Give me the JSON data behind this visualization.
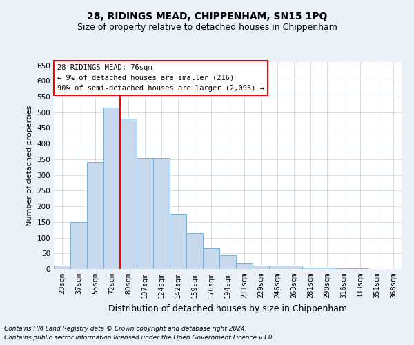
{
  "title": "28, RIDINGS MEAD, CHIPPENHAM, SN15 1PQ",
  "subtitle": "Size of property relative to detached houses in Chippenham",
  "xlabel": "Distribution of detached houses by size in Chippenham",
  "ylabel": "Number of detached properties",
  "bins": [
    "20sqm",
    "37sqm",
    "55sqm",
    "72sqm",
    "89sqm",
    "107sqm",
    "124sqm",
    "142sqm",
    "159sqm",
    "176sqm",
    "194sqm",
    "211sqm",
    "229sqm",
    "246sqm",
    "263sqm",
    "281sqm",
    "298sqm",
    "316sqm",
    "333sqm",
    "351sqm",
    "368sqm"
  ],
  "values": [
    10,
    150,
    340,
    515,
    480,
    355,
    355,
    175,
    115,
    65,
    45,
    20,
    10,
    10,
    10,
    5,
    5,
    3,
    2,
    1,
    1
  ],
  "bar_color": "#c9d9ed",
  "bar_edge_color": "#7aafd4",
  "red_line_x": 3.5,
  "annotation_text": "28 RIDINGS MEAD: 76sqm\n← 9% of detached houses are smaller (216)\n90% of semi-detached houses are larger (2,095) →",
  "ylim": [
    0,
    660
  ],
  "yticks": [
    0,
    50,
    100,
    150,
    200,
    250,
    300,
    350,
    400,
    450,
    500,
    550,
    600,
    650
  ],
  "footer1": "Contains HM Land Registry data © Crown copyright and database right 2024.",
  "footer2": "Contains public sector information licensed under the Open Government Licence v3.0.",
  "bg_color": "#eaf1f8",
  "plot_bg_color": "#ffffff",
  "grid_color": "#c8d4e0",
  "title_fontsize": 10,
  "subtitle_fontsize": 9,
  "xlabel_fontsize": 9,
  "ylabel_fontsize": 8,
  "annotation_fontsize": 7.5,
  "tick_fontsize": 7.5,
  "footer_fontsize": 6.5
}
